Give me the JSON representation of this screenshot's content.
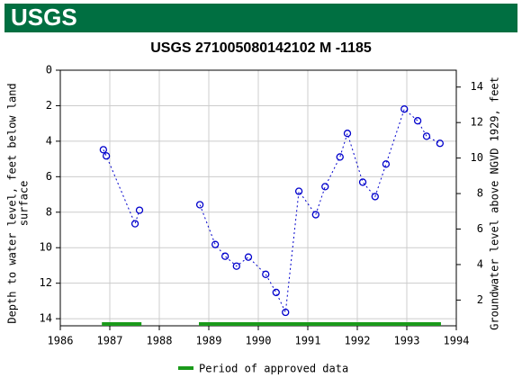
{
  "header": {
    "logo": "USGS"
  },
  "chart_data": {
    "type": "line",
    "title": "USGS 271005080142102 M  -1185",
    "y_label": [
      "Depth to water level, feet below land",
      "surface"
    ],
    "y2_label": "Groundwater level above NGVD 1929, feet",
    "xlim": [
      1986,
      1994
    ],
    "xticks": [
      1986,
      1987,
      1988,
      1989,
      1990,
      1991,
      1992,
      1993,
      1994
    ],
    "ylim": [
      14.4,
      0
    ],
    "yticks": [
      0,
      2,
      4,
      6,
      8,
      10,
      12,
      14
    ],
    "y2lim": [
      0.55,
      14.95
    ],
    "y2ticks": [
      2,
      4,
      6,
      8,
      10,
      12,
      14
    ],
    "grid": true,
    "series": [
      {
        "color": "#0000cc",
        "x": [
          1986.87,
          1986.93,
          1987.51,
          1987.6,
          null,
          1988.82,
          1989.13,
          1989.33,
          1989.56,
          1989.8,
          1990.15,
          1990.36,
          1990.55,
          1990.82,
          1991.16,
          1991.35,
          1991.65,
          1991.8,
          1992.11,
          1992.36,
          1992.58,
          1992.95,
          1993.22,
          1993.4,
          1993.67
        ],
        "values": [
          4.48,
          4.83,
          8.65,
          7.89,
          null,
          7.58,
          9.82,
          10.48,
          11.04,
          10.53,
          11.5,
          12.52,
          13.64,
          6.82,
          8.14,
          6.56,
          4.89,
          3.56,
          6.31,
          7.12,
          5.29,
          2.19,
          2.85,
          3.72,
          4.12
        ]
      }
    ],
    "periods": {
      "name": "Period of approved data",
      "color": "#1a9a1a",
      "ranges": [
        [
          1986.84,
          1987.64
        ],
        [
          1988.8,
          1993.69
        ]
      ]
    }
  }
}
